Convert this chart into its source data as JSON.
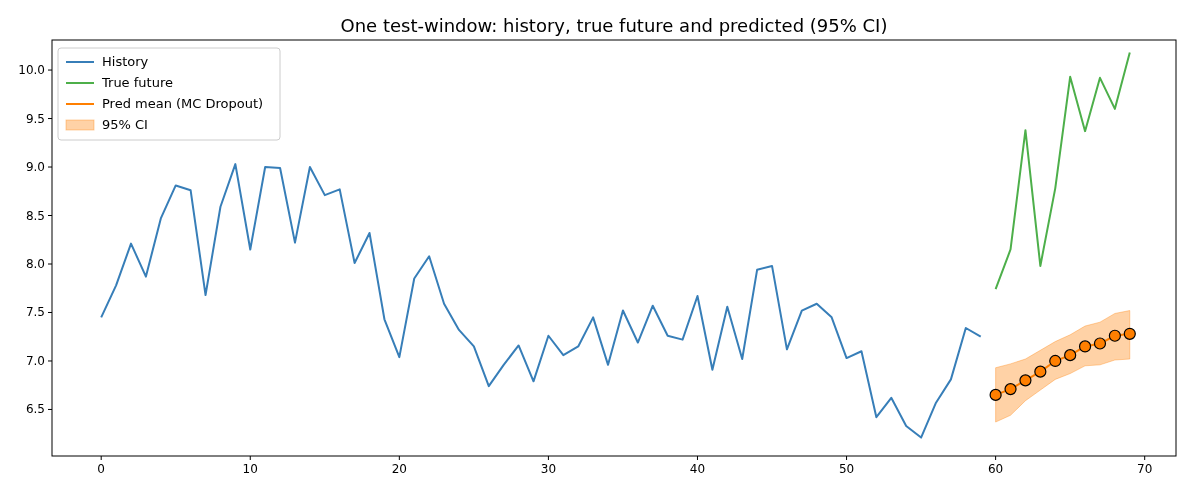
{
  "chart_data": {
    "type": "line",
    "title": "One test-window: history, true future and predicted (95% CI)",
    "xlim": [
      -3.3,
      72.1
    ],
    "xticks": [
      0,
      10,
      20,
      30,
      40,
      50,
      60,
      70
    ],
    "ylim": [
      6.02,
      10.31
    ],
    "yticks": [
      {
        "value": 6.5,
        "label": "6.5"
      },
      {
        "value": 7,
        "label": "7.0"
      },
      {
        "value": 7.5,
        "label": "7.5"
      },
      {
        "value": 8,
        "label": "8.0"
      },
      {
        "value": 8.5,
        "label": "8.5"
      },
      {
        "value": 9,
        "label": "9.0"
      },
      {
        "value": 9.5,
        "label": "9.5"
      },
      {
        "value": 10,
        "label": "10.0"
      }
    ],
    "grid": false,
    "annotations": [
      "95% CI"
    ],
    "legend": "top left",
    "line_style": "solid",
    "series": [
      {
        "name": "History",
        "color": "#377eb8",
        "marker": "none",
        "x": [
          0,
          1,
          2,
          3,
          4,
          5,
          6,
          7,
          8,
          9,
          10,
          11,
          12,
          13,
          14,
          15,
          16,
          17,
          18,
          19,
          20,
          21,
          22,
          23,
          24,
          25,
          26,
          27,
          28,
          29,
          30,
          31,
          32,
          33,
          34,
          35,
          36,
          37,
          38,
          39,
          40,
          41,
          42,
          43,
          44,
          45,
          46,
          47,
          48,
          49,
          50,
          51,
          52,
          53,
          54,
          55,
          56,
          57,
          58,
          59
        ],
        "values": [
          7.45,
          7.78,
          8.21,
          7.87,
          8.47,
          8.81,
          8.76,
          7.68,
          8.59,
          9.03,
          8.15,
          9.0,
          8.99,
          8.22,
          9.0,
          8.71,
          8.77,
          8.01,
          8.32,
          7.43,
          7.04,
          7.85,
          8.08,
          7.59,
          7.32,
          7.15,
          6.74,
          6.96,
          7.16,
          6.79,
          7.26,
          7.06,
          7.15,
          7.45,
          6.96,
          7.52,
          7.19,
          7.57,
          7.26,
          7.22,
          7.67,
          6.91,
          7.56,
          7.02,
          7.94,
          7.98,
          7.12,
          7.52,
          7.59,
          7.45,
          7.03,
          7.1,
          6.42,
          6.62,
          6.33,
          6.21,
          6.57,
          6.81,
          7.34,
          7.25
        ]
      },
      {
        "name": "True future",
        "color": "#4daf4a",
        "marker": "none",
        "x": [
          60,
          61,
          62,
          63,
          64,
          65,
          66,
          67,
          68,
          69
        ],
        "values": [
          7.74,
          8.15,
          9.38,
          7.98,
          8.78,
          9.93,
          9.37,
          9.92,
          9.6,
          10.18
        ]
      },
      {
        "name": "Pred mean (MC Dropout)",
        "color": "#ff7f00",
        "marker": "circle",
        "x": [
          60,
          61,
          62,
          63,
          64,
          65,
          66,
          67,
          68,
          69
        ],
        "values": [
          6.65,
          6.71,
          6.8,
          6.89,
          7.0,
          7.06,
          7.15,
          7.18,
          7.26,
          7.28
        ],
        "lower": [
          6.37,
          6.44,
          6.59,
          6.7,
          6.81,
          6.87,
          6.95,
          6.96,
          7.01,
          7.02
        ],
        "upper": [
          6.93,
          6.97,
          7.02,
          7.11,
          7.2,
          7.27,
          7.36,
          7.4,
          7.49,
          7.52
        ]
      }
    ]
  }
}
